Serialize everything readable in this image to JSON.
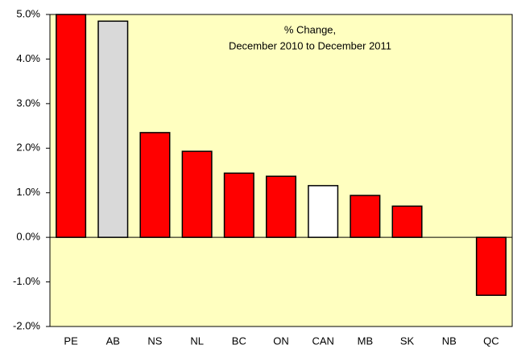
{
  "chart_data": {
    "type": "bar",
    "title": "% Change,",
    "subtitle": "December 2010 to December 2011",
    "categories": [
      "PE",
      "AB",
      "NS",
      "NL",
      "BC",
      "ON",
      "CAN",
      "MB",
      "SK",
      "NB",
      "QC"
    ],
    "values": [
      5.0,
      4.85,
      2.35,
      1.93,
      1.44,
      1.37,
      1.16,
      0.94,
      0.7,
      0,
      -1.3
    ],
    "colors": [
      "#ff0000",
      "#d9d9d9",
      "#ff0000",
      "#ff0000",
      "#ff0000",
      "#ff0000",
      "#ffffff",
      "#ff0000",
      "#ff0000",
      "#ff0000",
      "#ff0000"
    ],
    "ylim": [
      -2,
      5
    ],
    "yticks": [
      {
        "value": -2,
        "label": "-2.0%"
      },
      {
        "value": -1,
        "label": "-1.0%"
      },
      {
        "value": 0,
        "label": "0.0%"
      },
      {
        "value": 1,
        "label": "1.0%"
      },
      {
        "value": 2,
        "label": "2.0%"
      },
      {
        "value": 3,
        "label": "3.0%"
      },
      {
        "value": 4,
        "label": "4.0%"
      },
      {
        "value": 5,
        "label": "5.0%"
      }
    ],
    "background": "#ffffc0",
    "grid": false
  }
}
